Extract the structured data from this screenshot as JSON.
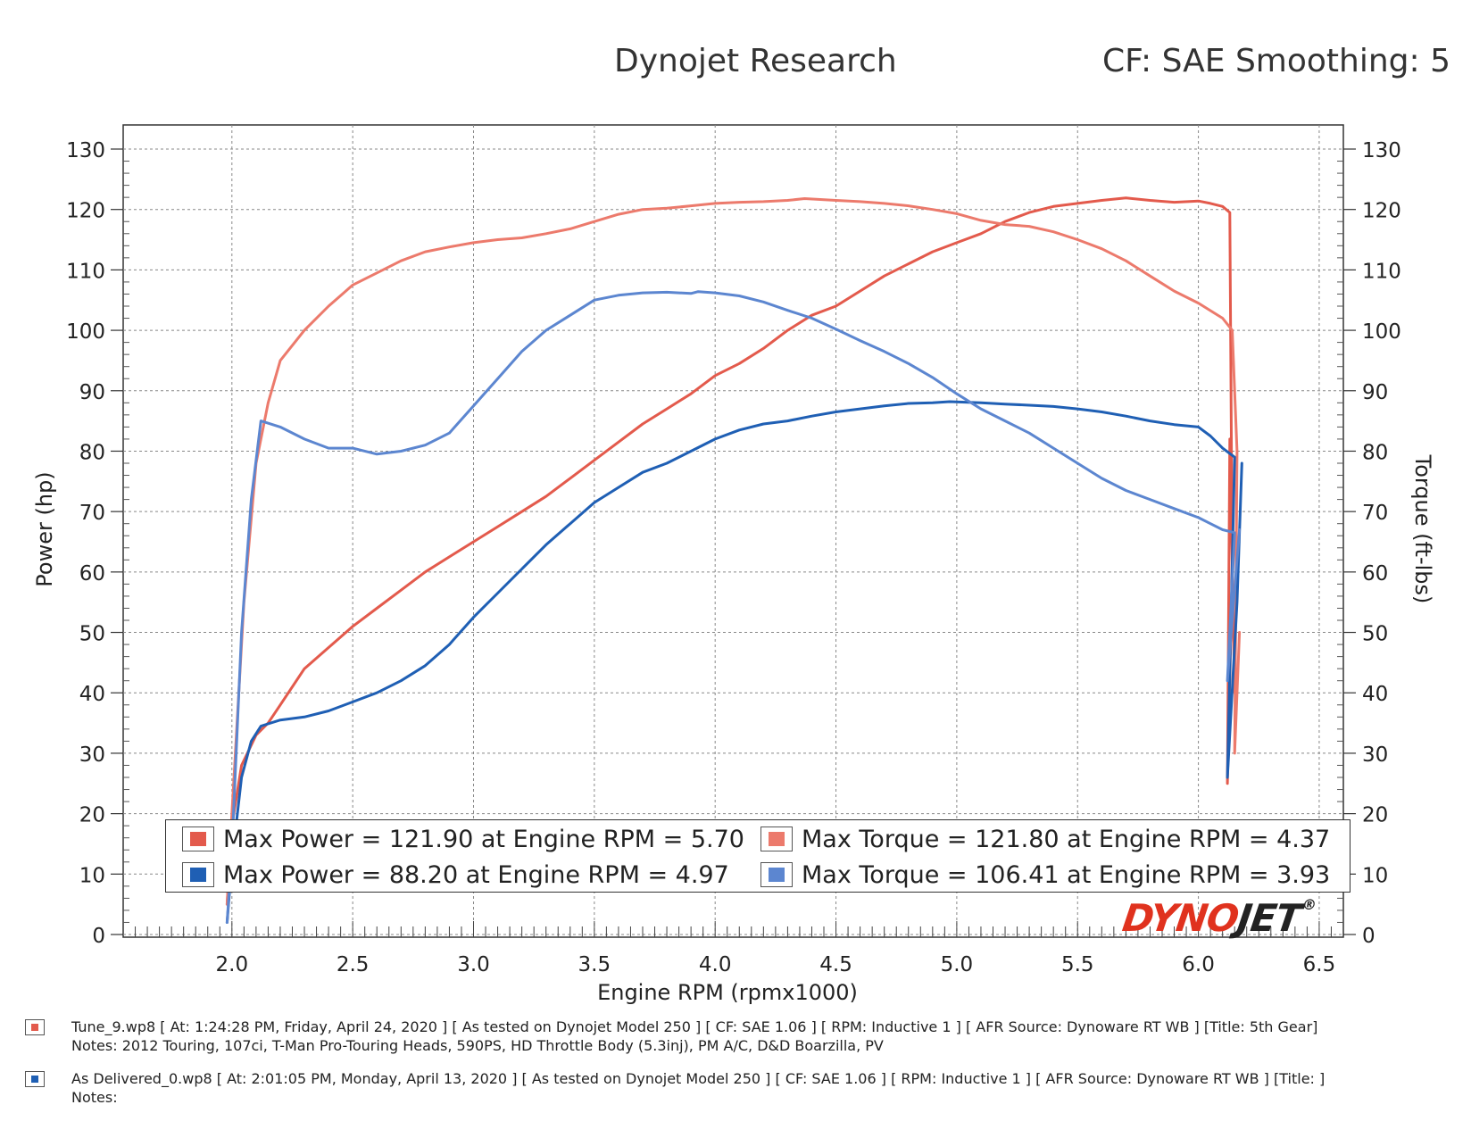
{
  "header": {
    "title": "Dynojet Research",
    "settings": "CF: SAE Smoothing: 5"
  },
  "colors": {
    "run1": "#e35a4c",
    "run1_torque": "#ec7a6c",
    "run2": "#1f5fb4",
    "run2_torque": "#5c86d0",
    "grid": "#888888",
    "logo_red": "#e0321e",
    "logo_dark": "#222222"
  },
  "chart_data": {
    "type": "line",
    "xlabel": "Engine RPM (rpmx1000)",
    "ylabel": "Power (hp)",
    "y2label": "Torque (ft-lbs)",
    "xlim": [
      1.55,
      6.6
    ],
    "ylim": [
      0,
      130
    ],
    "y2lim": [
      0,
      130
    ],
    "xticks": [
      "2.0",
      "2.5",
      "3.0",
      "3.5",
      "4.0",
      "4.5",
      "5.0",
      "5.5",
      "6.0",
      "6.5"
    ],
    "yticks": [
      "0",
      "10",
      "20",
      "30",
      "40",
      "50",
      "60",
      "70",
      "80",
      "90",
      "100",
      "110",
      "120",
      "130"
    ],
    "grid": true,
    "series": [
      {
        "run": "Tune_9.wp8",
        "kind": "power",
        "color": "#e35a4c",
        "x": [
          1.98,
          2.0,
          2.04,
          2.1,
          2.15,
          2.2,
          2.3,
          2.4,
          2.5,
          2.6,
          2.7,
          2.8,
          2.9,
          3.0,
          3.1,
          3.2,
          3.3,
          3.4,
          3.5,
          3.6,
          3.7,
          3.8,
          3.9,
          4.0,
          4.1,
          4.2,
          4.3,
          4.4,
          4.5,
          4.6,
          4.7,
          4.8,
          4.9,
          5.0,
          5.1,
          5.2,
          5.3,
          5.4,
          5.5,
          5.6,
          5.7,
          5.8,
          5.9,
          6.0,
          6.05,
          6.1,
          6.13,
          6.14,
          6.12,
          6.13,
          6.15
        ],
        "y": [
          5,
          18,
          28,
          33,
          35,
          38,
          44,
          47.5,
          51,
          54,
          57,
          60,
          62.5,
          65,
          67.5,
          70,
          72.5,
          75.5,
          78.5,
          81.5,
          84.5,
          87,
          89.5,
          92.5,
          94.5,
          97,
          100,
          102.5,
          104,
          106.5,
          109,
          111,
          113,
          114.5,
          116,
          118,
          119.5,
          120.5,
          121,
          121.5,
          121.9,
          121.5,
          121.2,
          121.4,
          121,
          120.5,
          119.5,
          60,
          25,
          82,
          40
        ]
      },
      {
        "run": "Tune_9.wp8",
        "kind": "torque",
        "color": "#ec7a6c",
        "x": [
          1.98,
          2.0,
          2.05,
          2.1,
          2.15,
          2.2,
          2.3,
          2.4,
          2.5,
          2.6,
          2.7,
          2.8,
          2.9,
          3.0,
          3.1,
          3.2,
          3.3,
          3.4,
          3.5,
          3.6,
          3.7,
          3.8,
          3.9,
          4.0,
          4.1,
          4.2,
          4.3,
          4.37,
          4.5,
          4.6,
          4.7,
          4.8,
          4.9,
          5.0,
          5.1,
          5.2,
          5.3,
          5.4,
          5.5,
          5.6,
          5.7,
          5.8,
          5.9,
          6.0,
          6.1,
          6.14,
          6.16,
          6.15,
          6.17
        ],
        "y": [
          5,
          20,
          55,
          78,
          88,
          95,
          100,
          104,
          107.5,
          109.5,
          111.5,
          113,
          113.8,
          114.5,
          115,
          115.3,
          116,
          116.8,
          118,
          119.2,
          120,
          120.2,
          120.6,
          121,
          121.2,
          121.3,
          121.5,
          121.8,
          121.5,
          121.3,
          121,
          120.6,
          120,
          119.3,
          118.2,
          117.5,
          117.2,
          116.3,
          115,
          113.5,
          111.5,
          109,
          106.5,
          104.5,
          102,
          100,
          80,
          30,
          50
        ]
      },
      {
        "run": "As Delivered_0.wp8",
        "kind": "power",
        "color": "#1f5fb4",
        "x": [
          1.98,
          2.0,
          2.04,
          2.08,
          2.12,
          2.2,
          2.3,
          2.4,
          2.5,
          2.6,
          2.7,
          2.8,
          2.9,
          3.0,
          3.1,
          3.2,
          3.3,
          3.4,
          3.5,
          3.6,
          3.7,
          3.8,
          3.9,
          4.0,
          4.1,
          4.2,
          4.3,
          4.4,
          4.5,
          4.6,
          4.7,
          4.8,
          4.9,
          4.97,
          5.1,
          5.2,
          5.3,
          5.4,
          5.5,
          5.6,
          5.7,
          5.8,
          5.9,
          6.0,
          6.05,
          6.1,
          6.15,
          6.12,
          6.16,
          6.18
        ],
        "y": [
          2,
          12,
          26,
          32,
          34.5,
          35.5,
          36,
          37,
          38.5,
          40,
          42,
          44.5,
          48,
          52.5,
          56.5,
          60.5,
          64.5,
          68,
          71.5,
          74,
          76.5,
          78,
          80,
          82,
          83.5,
          84.5,
          85,
          85.8,
          86.5,
          87,
          87.5,
          87.9,
          88,
          88.2,
          88,
          87.8,
          87.6,
          87.4,
          87,
          86.5,
          85.8,
          85,
          84.4,
          84,
          82.5,
          80.5,
          79,
          26,
          55,
          78
        ]
      },
      {
        "run": "As Delivered_0.wp8",
        "kind": "torque",
        "color": "#5c86d0",
        "x": [
          1.98,
          2.0,
          2.04,
          2.08,
          2.12,
          2.2,
          2.3,
          2.4,
          2.5,
          2.6,
          2.7,
          2.8,
          2.9,
          3.0,
          3.1,
          3.2,
          3.3,
          3.4,
          3.5,
          3.6,
          3.7,
          3.8,
          3.9,
          3.93,
          4.0,
          4.1,
          4.2,
          4.3,
          4.4,
          4.5,
          4.6,
          4.7,
          4.8,
          4.9,
          5.0,
          5.1,
          5.2,
          5.3,
          5.4,
          5.5,
          5.6,
          5.7,
          5.8,
          5.9,
          6.0,
          6.05,
          6.1,
          6.15,
          6.12,
          6.17
        ],
        "y": [
          2,
          14,
          50,
          72,
          85,
          84,
          82,
          80.5,
          80.5,
          79.5,
          80,
          81,
          83,
          87.5,
          92,
          96.5,
          100,
          102.5,
          105,
          105.8,
          106.2,
          106.3,
          106.1,
          106.41,
          106.2,
          105.7,
          104.7,
          103.3,
          102,
          100.2,
          98.3,
          96.5,
          94.5,
          92.2,
          89.5,
          87,
          85,
          83,
          80.5,
          78,
          75.5,
          73.5,
          72,
          70.5,
          69,
          68,
          67,
          66.5,
          42,
          67
        ]
      }
    ]
  },
  "legend": {
    "items": [
      {
        "label": "Max Power = 121.90 at Engine RPM = 5.70",
        "color": "#e35a4c"
      },
      {
        "label": "Max Torque = 121.80 at Engine RPM = 4.37",
        "color": "#ec7a6c"
      },
      {
        "label": "Max Power = 88.20 at Engine RPM = 4.97",
        "color": "#1f5fb4"
      },
      {
        "label": "Max Torque = 106.41 at Engine RPM = 3.93",
        "color": "#5c86d0"
      }
    ]
  },
  "logo": {
    "part1": "DYNO",
    "part2": "JET",
    "suffix": "®"
  },
  "notes": [
    {
      "color": "#e35a4c",
      "text": "Tune_9.wp8 [ At: 1:24:28 PM, Friday, April 24, 2020 ] [ As tested on Dynojet Model 250 ] [ CF: SAE 1.06 ] [ RPM: Inductive 1 ] [ AFR Source: Dynoware RT WB ] [Title: 5th Gear]  Notes: 2012 Touring, 107ci, T-Man Pro-Touring Heads, 590PS, HD Throttle Body (5.3inj), PM A/C, D&D Boarzilla, PV"
    },
    {
      "color": "#1f5fb4",
      "text": "As Delivered_0.wp8 [ At: 2:01:05 PM, Monday, April 13, 2020 ] [ As tested on Dynojet Model 250 ] [ CF: SAE 1.06 ] [ RPM: Inductive 1 ] [ AFR Source: Dynoware RT WB ] [Title: ]  Notes:"
    }
  ]
}
